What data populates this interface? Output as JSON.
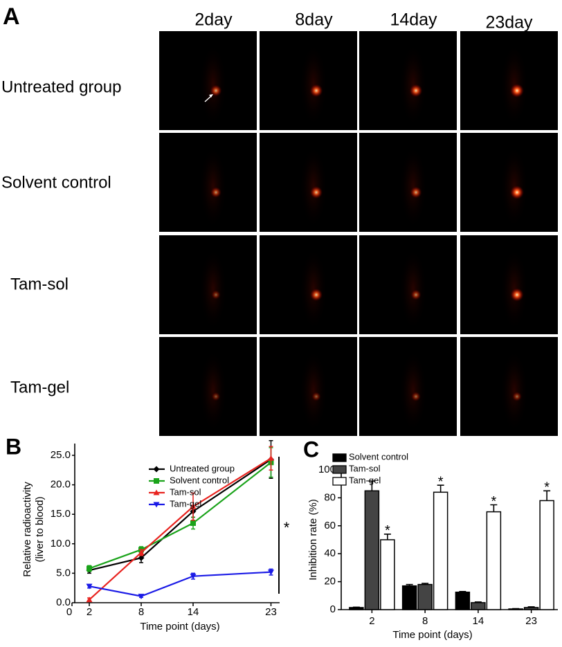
{
  "panel_a": {
    "label": "A",
    "columns": [
      "2day",
      "8day",
      "14day",
      "23day"
    ],
    "rows": [
      "Untreated group",
      "Solvent control",
      "Tam-sol",
      "Tam-gel"
    ]
  },
  "chart_data": [
    {
      "type": "line",
      "panel_label": "B",
      "x_label": "Time point (days)",
      "y_label": [
        "Relative radioactivity",
        "(liver to blood)"
      ],
      "x": [
        2,
        8,
        14,
        23
      ],
      "xlim": [
        0,
        24
      ],
      "xticks": [
        0,
        2,
        8,
        14,
        23
      ],
      "ylim": [
        0,
        27
      ],
      "yticks": [
        {
          "value": 0,
          "label": "0.0"
        },
        {
          "value": 5,
          "label": "5.0"
        },
        {
          "value": 10,
          "label": "10.0"
        },
        {
          "value": 15,
          "label": "15.0"
        },
        {
          "value": 20,
          "label": "20.0"
        },
        {
          "value": 25,
          "label": "25.0"
        }
      ],
      "annotation": "*",
      "series": [
        {
          "name": "Untreated group",
          "color": "#000000",
          "marker": "diamond",
          "values": [
            5.5,
            7.6,
            15.5,
            24.3
          ],
          "errors": [
            0.5,
            0.8,
            1.0,
            3.2
          ]
        },
        {
          "name": "Solvent control",
          "color": "#1aa31a",
          "marker": "square",
          "values": [
            5.8,
            9.0,
            13.5,
            23.8
          ],
          "errors": [
            0.5,
            0.5,
            1.0,
            2.5
          ]
        },
        {
          "name": "Tam-sol",
          "color": "#e8231f",
          "marker": "triangle-up",
          "values": [
            0.5,
            8.5,
            16.3,
            24.5
          ],
          "errors": [
            0.3,
            0.5,
            2.3,
            2.0
          ]
        },
        {
          "name": "Tam-gel",
          "color": "#1a1ae6",
          "marker": "triangle-down",
          "values": [
            2.8,
            1.1,
            4.5,
            5.2
          ],
          "errors": [
            0.3,
            0.2,
            0.5,
            0.5
          ]
        }
      ]
    },
    {
      "type": "bar",
      "panel_label": "C",
      "x_label": "Time point (days)",
      "y_label": "Inhibition rate (%)",
      "categories": [
        "2",
        "8",
        "14",
        "23"
      ],
      "ylim": [
        0,
        100
      ],
      "yticks": [
        0,
        20,
        40,
        60,
        80,
        100
      ],
      "series": [
        {
          "name": "Solvent control",
          "color": "#000000",
          "values": [
            1.5,
            17,
            12.5,
            0.5
          ],
          "errors": [
            0.3,
            1,
            0.5,
            0.2
          ]
        },
        {
          "name": "Tam-sol",
          "color": "#444444",
          "values": [
            85,
            18,
            5,
            1.5
          ],
          "errors": [
            7,
            0.8,
            0.5,
            0.5
          ]
        },
        {
          "name": "Tam-gel",
          "color": "#ffffff",
          "values": [
            50,
            84,
            70,
            78
          ],
          "errors": [
            4,
            5,
            5,
            7
          ],
          "labels": [
            "*",
            "*",
            "*",
            "*"
          ]
        }
      ]
    }
  ]
}
